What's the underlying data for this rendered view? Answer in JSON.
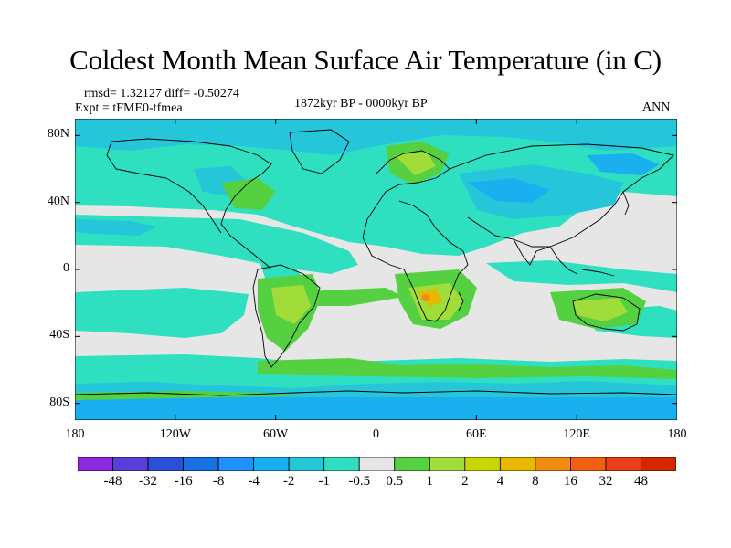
{
  "title": "Coldest Month Mean Surface Air Temperature (in C)",
  "stats": "rmsd= 1.32127 diff= -0.50274",
  "experiment": "Expt = tFME0-tfmea",
  "period": "1872kyr BP - 0000kyr BP",
  "season": "ANN",
  "map": {
    "projection": "cylindrical equidistant",
    "lon_range": [
      -180,
      180
    ],
    "lat_range": [
      -90,
      90
    ],
    "lon_ticks": [
      {
        "value": -180,
        "label": "180"
      },
      {
        "value": -120,
        "label": "120W"
      },
      {
        "value": -60,
        "label": "60W"
      },
      {
        "value": 0,
        "label": "0"
      },
      {
        "value": 60,
        "label": "60E"
      },
      {
        "value": 120,
        "label": "120E"
      },
      {
        "value": 180,
        "label": "180"
      }
    ],
    "lat_ticks": [
      {
        "value": 80,
        "label": "80N"
      },
      {
        "value": 40,
        "label": "40N"
      },
      {
        "value": 0,
        "label": "0"
      },
      {
        "value": -40,
        "label": "40S"
      },
      {
        "value": -80,
        "label": "80S"
      }
    ],
    "background_class": "-0.5 to 0.5"
  },
  "colorbar": {
    "labels": [
      "-48",
      "-32",
      "-16",
      "-8",
      "-4",
      "-2",
      "-1",
      "-0.5",
      "0.5",
      "1",
      "2",
      "4",
      "8",
      "16",
      "32",
      "48"
    ],
    "colors": [
      "#8a2be2",
      "#5a3fd8",
      "#2a4fd8",
      "#1570e0",
      "#1e90ff",
      "#1ab0f0",
      "#26c6da",
      "#2ee0c0",
      "#e6e6e6",
      "#55d040",
      "#a0dc3a",
      "#c8d800",
      "#e6b800",
      "#f08c10",
      "#f06010",
      "#e8401a",
      "#d42800"
    ]
  }
}
